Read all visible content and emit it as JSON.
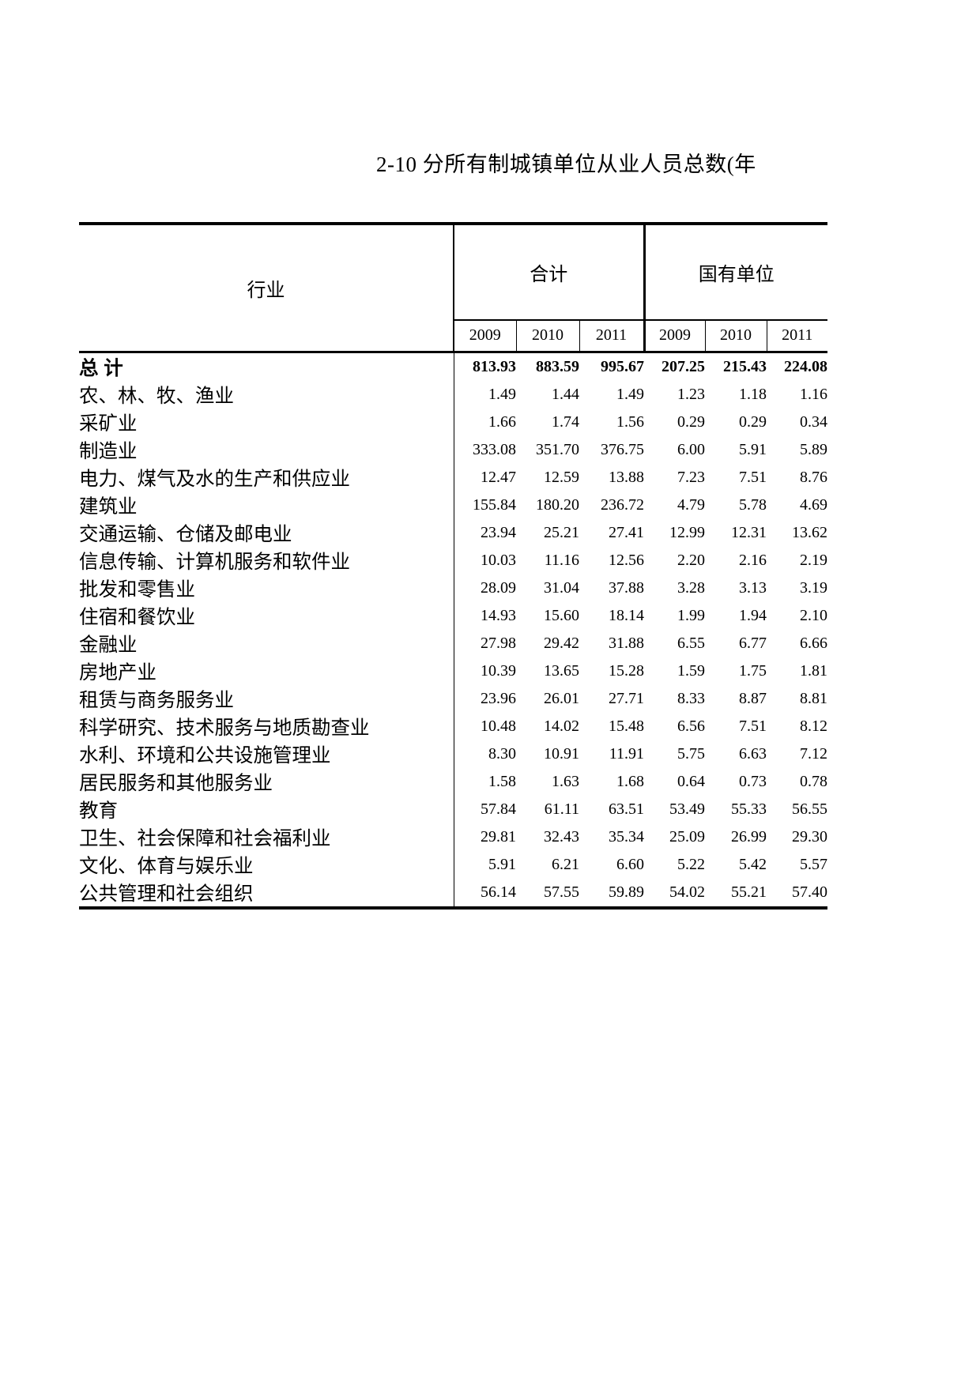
{
  "page": {
    "title": "2-10 分所有制城镇单位从业人员总数(年"
  },
  "table": {
    "industry_header": "行业",
    "groups": [
      {
        "label": "合计",
        "years": [
          "2009",
          "2010",
          "2011"
        ]
      },
      {
        "label": "国有单位",
        "years": [
          "2009",
          "2010",
          "2011"
        ]
      }
    ],
    "rows": [
      {
        "industry": "总  计",
        "bold": true,
        "values": [
          "813.93",
          "883.59",
          "995.67",
          "207.25",
          "215.43",
          "224.08"
        ]
      },
      {
        "industry": "农、林、牧、渔业",
        "values": [
          "1.49",
          "1.44",
          "1.49",
          "1.23",
          "1.18",
          "1.16"
        ]
      },
      {
        "industry": "采矿业",
        "values": [
          "1.66",
          "1.74",
          "1.56",
          "0.29",
          "0.29",
          "0.34"
        ]
      },
      {
        "industry": "制造业",
        "values": [
          "333.08",
          "351.70",
          "376.75",
          "6.00",
          "5.91",
          "5.89"
        ]
      },
      {
        "industry": "电力、煤气及水的生产和供应业",
        "values": [
          "12.47",
          "12.59",
          "13.88",
          "7.23",
          "7.51",
          "8.76"
        ]
      },
      {
        "industry": "建筑业",
        "values": [
          "155.84",
          "180.20",
          "236.72",
          "4.79",
          "5.78",
          "4.69"
        ]
      },
      {
        "industry": "交通运输、仓储及邮电业",
        "values": [
          "23.94",
          "25.21",
          "27.41",
          "12.99",
          "12.31",
          "13.62"
        ]
      },
      {
        "industry": "信息传输、计算机服务和软件业",
        "values": [
          "10.03",
          "11.16",
          "12.56",
          "2.20",
          "2.16",
          "2.19"
        ]
      },
      {
        "industry": "批发和零售业",
        "values": [
          "28.09",
          "31.04",
          "37.88",
          "3.28",
          "3.13",
          "3.19"
        ]
      },
      {
        "industry": "住宿和餐饮业",
        "values": [
          "14.93",
          "15.60",
          "18.14",
          "1.99",
          "1.94",
          "2.10"
        ]
      },
      {
        "industry": "金融业",
        "values": [
          "27.98",
          "29.42",
          "31.88",
          "6.55",
          "6.77",
          "6.66"
        ]
      },
      {
        "industry": "房地产业",
        "values": [
          "10.39",
          "13.65",
          "15.28",
          "1.59",
          "1.75",
          "1.81"
        ]
      },
      {
        "industry": "租赁与商务服务业",
        "values": [
          "23.96",
          "26.01",
          "27.71",
          "8.33",
          "8.87",
          "8.81"
        ]
      },
      {
        "industry": "科学研究、技术服务与地质勘查业",
        "values": [
          "10.48",
          "14.02",
          "15.48",
          "6.56",
          "7.51",
          "8.12"
        ]
      },
      {
        "industry": "水利、环境和公共设施管理业",
        "values": [
          "8.30",
          "10.91",
          "11.91",
          "5.75",
          "6.63",
          "7.12"
        ]
      },
      {
        "industry": "居民服务和其他服务业",
        "values": [
          "1.58",
          "1.63",
          "1.68",
          "0.64",
          "0.73",
          "0.78"
        ]
      },
      {
        "industry": "教育",
        "values": [
          "57.84",
          "61.11",
          "63.51",
          "53.49",
          "55.33",
          "56.55"
        ]
      },
      {
        "industry": "卫生、社会保障和社会福利业",
        "values": [
          "29.81",
          "32.43",
          "35.34",
          "25.09",
          "26.99",
          "29.30"
        ]
      },
      {
        "industry": "文化、体育与娱乐业",
        "values": [
          "5.91",
          "6.21",
          "6.60",
          "5.22",
          "5.42",
          "5.57"
        ]
      },
      {
        "industry": "公共管理和社会组织",
        "values": [
          "56.14",
          "57.55",
          "59.89",
          "54.02",
          "55.21",
          "57.40"
        ]
      }
    ]
  }
}
